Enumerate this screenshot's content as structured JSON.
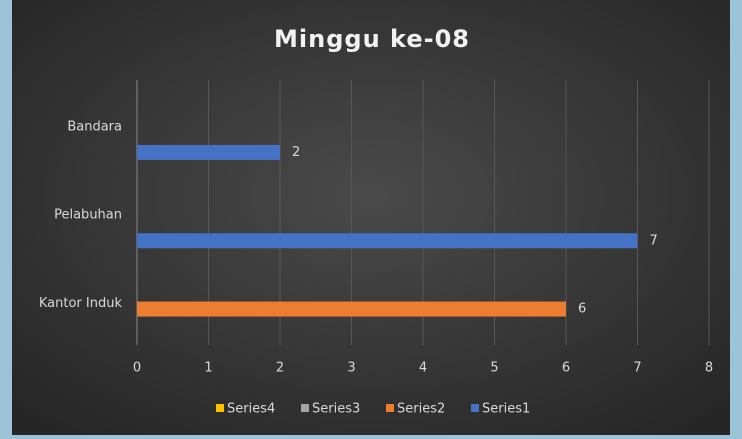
{
  "chart_data": {
    "type": "hbar",
    "title": "Minggu ke-08",
    "categories": [
      "Kantor Induk",
      "Pelabuhan",
      "Bandara"
    ],
    "series": [
      {
        "name": "Series1",
        "color": "#4472c4",
        "values": [
          null,
          7,
          2
        ]
      },
      {
        "name": "Series2",
        "color": "#ed7d31",
        "values": [
          6,
          null,
          null
        ]
      },
      {
        "name": "Series3",
        "color": "#a5a5a5",
        "values": [
          null,
          null,
          null
        ]
      },
      {
        "name": "Series4",
        "color": "#ffc000",
        "values": [
          null,
          null,
          null
        ]
      }
    ],
    "xlim": [
      0,
      8
    ],
    "xticks": [
      0,
      1,
      2,
      3,
      4,
      5,
      6,
      7,
      8
    ],
    "grid": true,
    "legend": "bottom"
  }
}
